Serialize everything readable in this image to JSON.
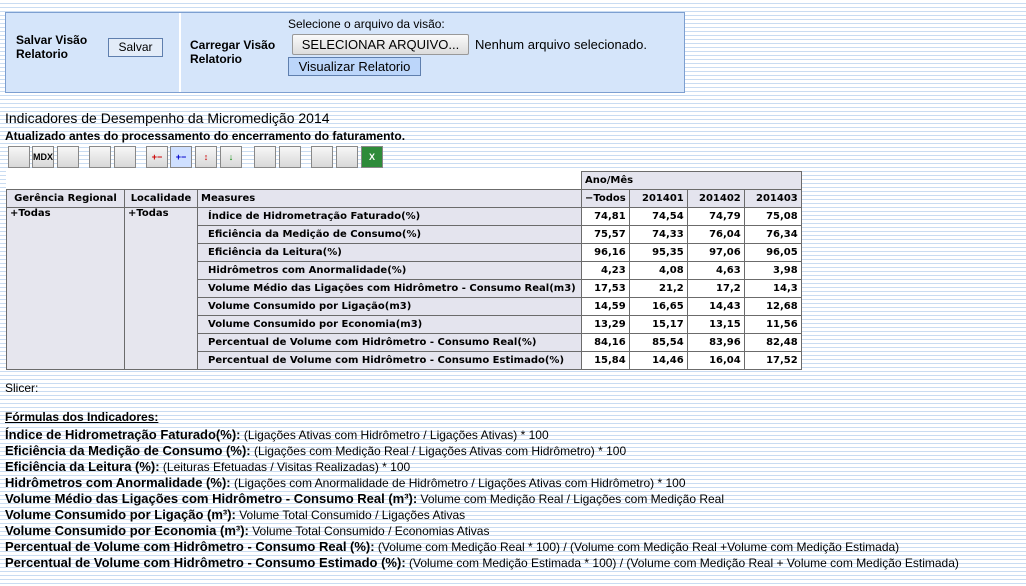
{
  "panel": {
    "save_label": "Salvar Visão Relatorio",
    "save_button": "Salvar",
    "load_label": "Carregar Visão Relatorio",
    "file_prompt": "Selecione o arquivo da visão:",
    "file_button": "SELECIONAR ARQUIVO...",
    "file_status": "Nenhum arquivo selecionado.",
    "view_button": "Visualizar Relatorio"
  },
  "header": {
    "title": "Indicadores de Desempenho da Micromedição 2014",
    "subtitle": "Atualizado antes do processamento do encerramento do faturamento."
  },
  "toolbar": {
    "mdx_label": "MDX"
  },
  "table": {
    "group_header": "Ano/Mês",
    "columns": [
      "Gerência Regional",
      "Localidade",
      "Measures",
      "−Todos",
      "201401",
      "201402",
      "201403"
    ],
    "gerencia": "+Todas",
    "localidade": "+Todas",
    "rows": [
      [
        "Índice de Hidrometração Faturado(%)",
        "74,81",
        "74,54",
        "74,79",
        "75,08"
      ],
      [
        "Eficiência da Medição de Consumo(%)",
        "75,57",
        "74,33",
        "76,04",
        "76,34"
      ],
      [
        "Eficiência da Leitura(%)",
        "96,16",
        "95,35",
        "97,06",
        "96,05"
      ],
      [
        "Hidrômetros com Anormalidade(%)",
        "4,23",
        "4,08",
        "4,63",
        "3,98"
      ],
      [
        "Volume Médio das Ligações com Hidrômetro - Consumo Real(m3)",
        "17,53",
        "21,2",
        "17,2",
        "14,3"
      ],
      [
        "Volume Consumido por Ligação(m3)",
        "14,59",
        "16,65",
        "14,43",
        "12,68"
      ],
      [
        "Volume Consumido por Economia(m3)",
        "13,29",
        "15,17",
        "13,15",
        "11,56"
      ],
      [
        "Percentual de Volume com Hidrômetro - Consumo Real(%)",
        "84,16",
        "85,54",
        "83,96",
        "82,48"
      ],
      [
        "Percentual de Volume com Hidrômetro - Consumo Estimado(%)",
        "15,84",
        "14,46",
        "16,04",
        "17,52"
      ]
    ]
  },
  "slicer": "Slicer:",
  "formulas": {
    "heading": "Fórmulas dos Indicadores:",
    "items": [
      {
        "name": "Índice de Hidrometração Faturado(%):",
        "expr": " (Ligações Ativas com Hidrômetro / Ligações Ativas) * 100"
      },
      {
        "name": "Eficiência da Medição de Consumo (%):",
        "expr": " (Ligações com Medição Real / Ligações Ativas com Hidrômetro) * 100"
      },
      {
        "name": "Eficiência da Leitura (%):",
        "expr": " (Leituras Efetuadas / Visitas Realizadas) * 100"
      },
      {
        "name": "Hidrômetros com Anormalidade (%):",
        "expr": " (Ligações com Anormalidade de Hidrômetro / Ligações Ativas com Hidrômetro) * 100"
      },
      {
        "name": "Volume Médio das Ligações com Hidrômetro - Consumo Real (m³):",
        "expr": " Volume com Medição Real / Ligações com Medição Real"
      },
      {
        "name": "Volume Consumido por Ligação (m³):",
        "expr": " Volume Total Consumido / Ligações Ativas"
      },
      {
        "name": "Volume Consumido por Economia (m³):",
        "expr": " Volume Total Consumido / Economias Ativas"
      },
      {
        "name": "Percentual de Volume com Hidrômetro - Consumo Real (%):",
        "expr": " (Volume com Medição Real * 100) / (Volume com Medição Real +Volume com Medição Estimada)"
      },
      {
        "name": "Percentual de Volume com Hidrômetro - Consumo Estimado (%):",
        "expr": " (Volume com Medição Estimada * 100) / (Volume com Medição Real + Volume com Medição Estimada)"
      }
    ]
  }
}
